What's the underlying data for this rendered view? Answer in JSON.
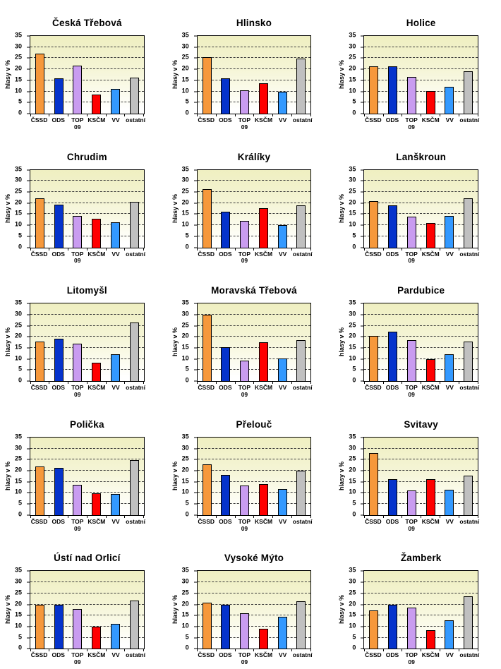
{
  "page": {
    "background": "#FFFFFF"
  },
  "chart_data": {
    "type": "bar",
    "layout": "grid-5x3",
    "ylabel": "hlasy v %",
    "ylim": [
      0,
      35
    ],
    "yticks": [
      0,
      5,
      10,
      15,
      20,
      25,
      30,
      35
    ],
    "gridlines": "dashed-horizontal",
    "plot_background_top": "#EFEFC1",
    "plot_background_bottom": "#FFFFFF",
    "categories": [
      "ČSSD",
      "ODS",
      "TOP 09",
      "KSČM",
      "VV",
      "ostatní"
    ],
    "series_colors": [
      "#F6983B",
      "#0533CC",
      "#C99CF0",
      "#FF0000",
      "#3399FF",
      "#C0C0C0"
    ],
    "charts": [
      {
        "title": "Česká Třebová",
        "values": [
          27.2,
          16.0,
          21.5,
          8.6,
          11.0,
          16.3
        ]
      },
      {
        "title": "Hlinsko",
        "values": [
          25.5,
          16.0,
          10.5,
          13.7,
          10.0,
          24.8
        ]
      },
      {
        "title": "Holice",
        "values": [
          21.2,
          21.2,
          16.6,
          10.2,
          12.2,
          19.0
        ]
      },
      {
        "title": "Chrudim",
        "values": [
          22.2,
          19.4,
          14.3,
          12.8,
          11.2,
          20.6
        ]
      },
      {
        "title": "Králíky",
        "values": [
          26.3,
          16.0,
          12.0,
          17.7,
          10.0,
          19.0
        ]
      },
      {
        "title": "Lanškroun",
        "values": [
          21.0,
          19.0,
          13.8,
          11.0,
          14.2,
          22.2
        ]
      },
      {
        "title": "Litomyšl",
        "values": [
          17.8,
          19.0,
          16.8,
          8.4,
          12.3,
          26.5
        ]
      },
      {
        "title": "Moravská Třebová",
        "values": [
          30.0,
          15.3,
          9.4,
          17.5,
          10.3,
          18.5
        ]
      },
      {
        "title": "Pardubice",
        "values": [
          20.3,
          22.3,
          18.5,
          9.8,
          12.0,
          17.8
        ]
      },
      {
        "title": "Polička",
        "values": [
          22.0,
          21.3,
          13.7,
          9.8,
          9.4,
          24.8
        ]
      },
      {
        "title": "Přelouč",
        "values": [
          23.0,
          18.0,
          13.4,
          14.0,
          11.8,
          20.0
        ]
      },
      {
        "title": "Svitavy",
        "values": [
          27.8,
          16.2,
          11.0,
          16.2,
          11.3,
          17.8
        ]
      },
      {
        "title": "Ústí nad Orlicí",
        "values": [
          19.8,
          20.0,
          17.8,
          10.0,
          11.3,
          21.7
        ]
      },
      {
        "title": "Vysoké Mýto",
        "values": [
          20.7,
          19.8,
          16.0,
          9.1,
          14.4,
          21.4
        ]
      },
      {
        "title": "Žamberk",
        "values": [
          17.2,
          20.0,
          18.5,
          8.4,
          12.7,
          23.7
        ]
      }
    ]
  }
}
